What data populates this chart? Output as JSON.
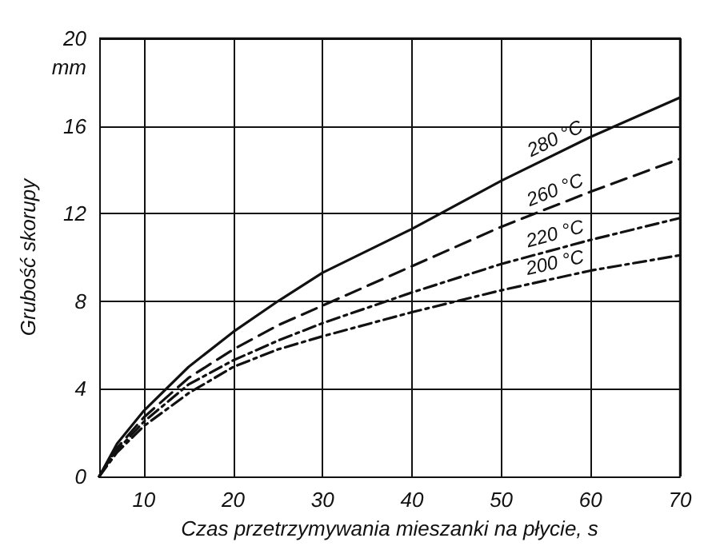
{
  "chart_data": {
    "type": "line",
    "xlabel": "Czas przetrzymywania mieszanki na płycie, s",
    "ylabel": "Grubość skorupy",
    "x": [
      5,
      7,
      10,
      15,
      20,
      25,
      30,
      40,
      50,
      60,
      70
    ],
    "series": [
      {
        "name": "280 °C",
        "color": "#111111",
        "line_style": "solid",
        "values": [
          0,
          1.5,
          3.0,
          5.0,
          6.6,
          8.0,
          9.3,
          11.3,
          13.5,
          15.5,
          17.3
        ]
      },
      {
        "name": "260 °C",
        "color": "#111111",
        "line_style": "dashed",
        "values": [
          0,
          1.3,
          2.7,
          4.5,
          5.8,
          6.9,
          7.8,
          9.6,
          11.4,
          13.0,
          14.5
        ]
      },
      {
        "name": "220 °C",
        "color": "#111111",
        "line_style": "dotted",
        "values": [
          0,
          1.2,
          2.5,
          4.2,
          5.3,
          6.2,
          7.0,
          8.4,
          9.7,
          10.8,
          11.8
        ]
      },
      {
        "name": "200 °C",
        "color": "#111111",
        "line_style": "dotted",
        "values": [
          0,
          1.1,
          2.3,
          3.8,
          5.0,
          5.8,
          6.4,
          7.5,
          8.5,
          9.4,
          10.1
        ]
      }
    ],
    "annotations": [
      "mm"
    ],
    "xlim": [
      5,
      70
    ],
    "xticks": [
      10,
      20,
      30,
      40,
      50,
      60,
      70
    ],
    "ylim": [
      0,
      20
    ],
    "yticks": [
      0,
      4,
      8,
      12,
      16,
      20
    ],
    "grid": true,
    "marker": "none"
  }
}
